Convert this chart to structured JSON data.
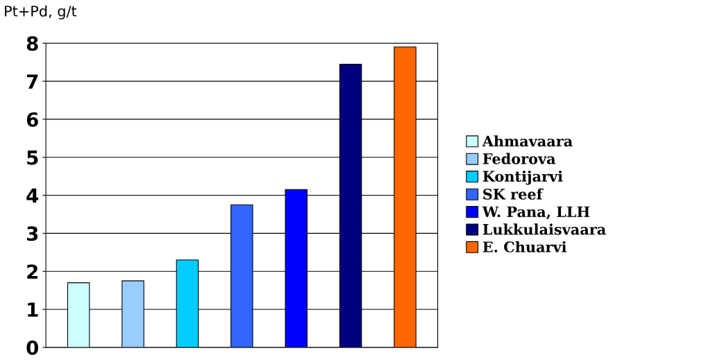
{
  "chart_data": {
    "type": "bar",
    "ylabel": "Pt+Pd, g/t",
    "categories": [
      null,
      null,
      null,
      null,
      null,
      null,
      null
    ],
    "series": [
      {
        "name": "Ahmavaara",
        "color": "#ccffff",
        "values": [
          1.7,
          null,
          null,
          null,
          null,
          null,
          null
        ]
      },
      {
        "name": "Fedorova",
        "color": "#99ccff",
        "values": [
          null,
          1.75,
          null,
          null,
          null,
          null,
          null
        ]
      },
      {
        "name": "Kontijarvi",
        "color": "#00ccff",
        "values": [
          null,
          null,
          2.3,
          null,
          null,
          null,
          null
        ]
      },
      {
        "name": "SK reef",
        "color": "#3366ff",
        "values": [
          null,
          null,
          null,
          3.75,
          null,
          null,
          null
        ]
      },
      {
        "name": "W. Pana, LLH",
        "color": "#0000ff",
        "values": [
          null,
          null,
          null,
          null,
          4.15,
          null,
          null
        ]
      },
      {
        "name": "Lukkulaisvaara",
        "color": "#000080",
        "values": [
          null,
          null,
          null,
          null,
          null,
          7.45,
          null
        ]
      },
      {
        "name": "E. Chuarvi",
        "color": "#ff6600",
        "values": [
          null,
          null,
          null,
          null,
          null,
          null,
          7.9
        ]
      }
    ],
    "ylim": [
      0,
      8
    ],
    "yticks": [
      0,
      1,
      2,
      3,
      4,
      5,
      6,
      7,
      8
    ],
    "grid": "y",
    "legend": "right"
  }
}
